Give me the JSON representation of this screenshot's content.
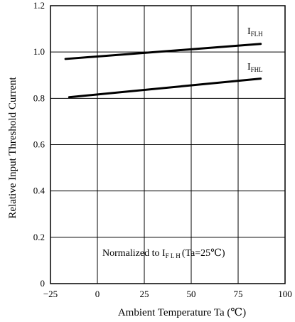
{
  "chart_data": {
    "type": "line",
    "xlabel": "Ambient   Temperature Ta (℃)",
    "ylabel": "Relative Input   Threshold Current",
    "xlim": [
      -25,
      100
    ],
    "ylim": [
      0,
      1.2
    ],
    "x_ticks": [
      -25,
      0,
      25,
      50,
      75,
      100
    ],
    "y_ticks": [
      0,
      0.2,
      0.4,
      0.6,
      0.8,
      1.0,
      1.2
    ],
    "x_tick_labels": [
      "−25",
      "0",
      "25",
      "50",
      "75",
      "100"
    ],
    "y_tick_labels": [
      "0",
      "0.2",
      "0.4",
      "0.6",
      "0.8",
      "1.0",
      "1.2"
    ],
    "grid": true,
    "series": [
      {
        "name_main": "I",
        "name_sub": "FLH",
        "x": [
          -17,
          87
        ],
        "y": [
          0.97,
          1.035
        ]
      },
      {
        "name_main": "I",
        "name_sub": "FHL",
        "x": [
          -15,
          87
        ],
        "y": [
          0.805,
          0.885
        ]
      }
    ],
    "annotation": {
      "prefix": "Normalized to I",
      "sub": "F L H",
      "suffix": "(Ta=25℃)"
    }
  }
}
